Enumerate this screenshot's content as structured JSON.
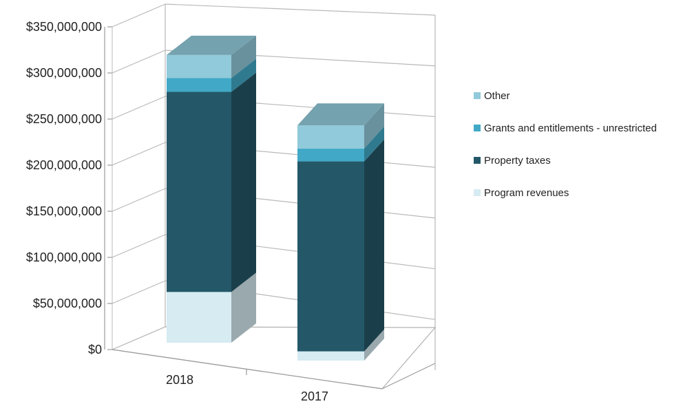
{
  "chart_data": {
    "type": "bar",
    "stacked": true,
    "style": "3d-column",
    "categories": [
      "2018",
      "2017"
    ],
    "series": [
      {
        "name": "Program revenues",
        "values": [
          55000000,
          10000000
        ],
        "color": "#d6ebf2"
      },
      {
        "name": "Property taxes",
        "values": [
          217000000,
          206000000
        ],
        "color": "#245868"
      },
      {
        "name": "Grants and entitlements - unrestricted",
        "values": [
          15000000,
          14000000
        ],
        "color": "#41a9c7"
      },
      {
        "name": "Other",
        "values": [
          25000000,
          25000000
        ],
        "color": "#91cada"
      }
    ],
    "y_ticks": [
      "$0",
      "$50,000,000",
      "$100,000,000",
      "$150,000,000",
      "$200,000,000",
      "$250,000,000",
      "$300,000,000",
      "$350,000,000"
    ],
    "ylim": [
      0,
      350000000
    ],
    "grid": true,
    "legend_position": "right"
  }
}
